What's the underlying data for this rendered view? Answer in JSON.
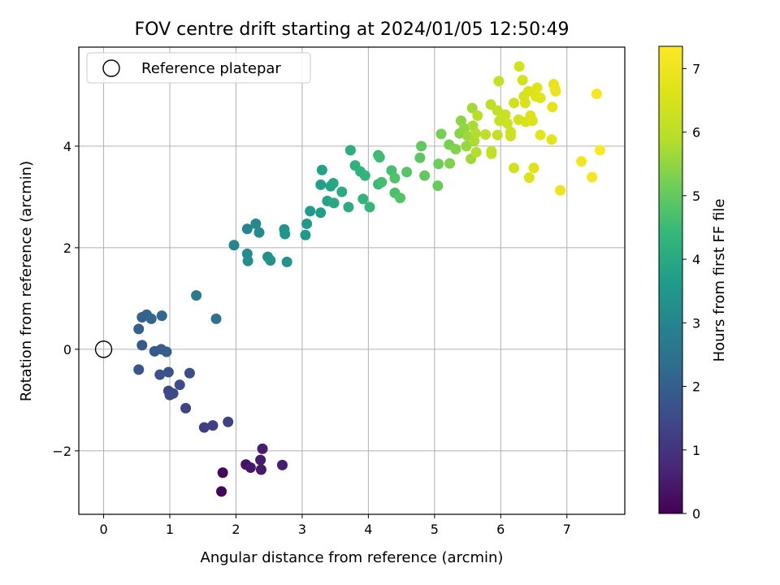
{
  "chart_data": {
    "type": "scatter",
    "title": "FOV centre drift starting at 2024/01/05 12:50:49",
    "xlabel": "Angular distance from reference (arcmin)",
    "ylabel": "Rotation from reference (arcmin)",
    "xlim": [
      -0.375,
      7.875
    ],
    "ylim": [
      -3.25,
      5.95
    ],
    "xticks": [
      0,
      1,
      2,
      3,
      4,
      5,
      6,
      7
    ],
    "yticks": [
      -2,
      0,
      2,
      4
    ],
    "grid": true,
    "legend": {
      "position": "top-left",
      "entries": [
        "Reference platepar"
      ]
    },
    "reference_point": {
      "x": 0,
      "y": 0
    },
    "colorbar": {
      "label": "Hours from first FF file",
      "range": [
        0,
        7.35
      ],
      "ticks": [
        0,
        1,
        2,
        3,
        4,
        5,
        6,
        7
      ],
      "colormap": "viridis"
    },
    "points": [
      {
        "x": 1.78,
        "y": -2.8,
        "h": 0.1
      },
      {
        "x": 1.8,
        "y": -2.43,
        "h": 0.15
      },
      {
        "x": 2.15,
        "y": -2.27,
        "h": 0.3
      },
      {
        "x": 2.22,
        "y": -2.33,
        "h": 0.4
      },
      {
        "x": 2.38,
        "y": -2.37,
        "h": 0.45
      },
      {
        "x": 2.37,
        "y": -2.18,
        "h": 0.5
      },
      {
        "x": 2.4,
        "y": -1.96,
        "h": 0.55
      },
      {
        "x": 2.7,
        "y": -2.28,
        "h": 0.6
      },
      {
        "x": 1.52,
        "y": -1.54,
        "h": 1.2
      },
      {
        "x": 1.65,
        "y": -1.5,
        "h": 1.25
      },
      {
        "x": 1.88,
        "y": -1.43,
        "h": 1.3
      },
      {
        "x": 1.24,
        "y": -1.16,
        "h": 1.35
      },
      {
        "x": 1.0,
        "y": -0.9,
        "h": 1.4
      },
      {
        "x": 0.98,
        "y": -0.82,
        "h": 1.45
      },
      {
        "x": 1.05,
        "y": -0.87,
        "h": 1.5
      },
      {
        "x": 1.15,
        "y": -0.7,
        "h": 1.55
      },
      {
        "x": 1.3,
        "y": -0.47,
        "h": 1.6
      },
      {
        "x": 0.98,
        "y": -0.45,
        "h": 1.65
      },
      {
        "x": 0.85,
        "y": -0.5,
        "h": 1.7
      },
      {
        "x": 0.53,
        "y": -0.4,
        "h": 1.75
      },
      {
        "x": 0.58,
        "y": 0.08,
        "h": 1.8
      },
      {
        "x": 0.77,
        "y": -0.04,
        "h": 1.85
      },
      {
        "x": 0.87,
        "y": 0.0,
        "h": 1.9
      },
      {
        "x": 0.95,
        "y": -0.05,
        "h": 1.95
      },
      {
        "x": 0.53,
        "y": 0.4,
        "h": 2.0
      },
      {
        "x": 0.58,
        "y": 0.63,
        "h": 2.05
      },
      {
        "x": 0.65,
        "y": 0.68,
        "h": 2.1
      },
      {
        "x": 0.72,
        "y": 0.6,
        "h": 2.15
      },
      {
        "x": 0.88,
        "y": 0.66,
        "h": 2.2
      },
      {
        "x": 1.7,
        "y": 0.6,
        "h": 2.5
      },
      {
        "x": 1.4,
        "y": 1.06,
        "h": 2.7
      },
      {
        "x": 1.97,
        "y": 2.05,
        "h": 3.0
      },
      {
        "x": 2.17,
        "y": 2.37,
        "h": 3.05
      },
      {
        "x": 2.3,
        "y": 2.47,
        "h": 3.1
      },
      {
        "x": 2.35,
        "y": 2.3,
        "h": 3.15
      },
      {
        "x": 2.17,
        "y": 1.88,
        "h": 3.2
      },
      {
        "x": 2.18,
        "y": 1.74,
        "h": 3.25
      },
      {
        "x": 2.48,
        "y": 1.82,
        "h": 3.3
      },
      {
        "x": 2.52,
        "y": 1.75,
        "h": 3.35
      },
      {
        "x": 2.77,
        "y": 1.72,
        "h": 3.4
      },
      {
        "x": 2.73,
        "y": 2.36,
        "h": 3.45
      },
      {
        "x": 2.74,
        "y": 2.27,
        "h": 3.5
      },
      {
        "x": 3.05,
        "y": 2.25,
        "h": 3.55
      },
      {
        "x": 3.07,
        "y": 2.47,
        "h": 3.6
      },
      {
        "x": 3.12,
        "y": 2.72,
        "h": 3.65
      },
      {
        "x": 3.28,
        "y": 2.69,
        "h": 3.7
      },
      {
        "x": 3.28,
        "y": 3.24,
        "h": 3.75
      },
      {
        "x": 3.3,
        "y": 3.53,
        "h": 3.8
      },
      {
        "x": 3.38,
        "y": 2.92,
        "h": 3.85
      },
      {
        "x": 3.43,
        "y": 3.21,
        "h": 3.9
      },
      {
        "x": 3.47,
        "y": 3.27,
        "h": 3.95
      },
      {
        "x": 3.48,
        "y": 2.88,
        "h": 4.0
      },
      {
        "x": 3.6,
        "y": 3.1,
        "h": 4.05
      },
      {
        "x": 3.7,
        "y": 2.8,
        "h": 4.1
      },
      {
        "x": 3.73,
        "y": 3.92,
        "h": 4.15
      },
      {
        "x": 3.8,
        "y": 3.62,
        "h": 4.2
      },
      {
        "x": 3.88,
        "y": 3.5,
        "h": 4.25
      },
      {
        "x": 3.92,
        "y": 2.96,
        "h": 4.3
      },
      {
        "x": 3.95,
        "y": 3.42,
        "h": 4.35
      },
      {
        "x": 4.02,
        "y": 2.8,
        "h": 4.4
      },
      {
        "x": 4.15,
        "y": 3.25,
        "h": 4.45
      },
      {
        "x": 4.15,
        "y": 3.82,
        "h": 4.5
      },
      {
        "x": 4.17,
        "y": 3.78,
        "h": 4.55
      },
      {
        "x": 4.2,
        "y": 3.29,
        "h": 4.6
      },
      {
        "x": 4.35,
        "y": 3.52,
        "h": 4.65
      },
      {
        "x": 4.4,
        "y": 3.08,
        "h": 4.7
      },
      {
        "x": 4.4,
        "y": 3.37,
        "h": 4.75
      },
      {
        "x": 4.48,
        "y": 2.98,
        "h": 4.8
      },
      {
        "x": 4.58,
        "y": 3.49,
        "h": 4.85
      },
      {
        "x": 4.78,
        "y": 3.77,
        "h": 4.9
      },
      {
        "x": 4.8,
        "y": 4.0,
        "h": 4.95
      },
      {
        "x": 4.85,
        "y": 3.42,
        "h": 5.0
      },
      {
        "x": 5.05,
        "y": 3.22,
        "h": 5.05
      },
      {
        "x": 5.06,
        "y": 3.65,
        "h": 5.1
      },
      {
        "x": 5.1,
        "y": 4.24,
        "h": 5.2
      },
      {
        "x": 5.22,
        "y": 4.03,
        "h": 5.25
      },
      {
        "x": 5.23,
        "y": 3.66,
        "h": 5.3
      },
      {
        "x": 5.32,
        "y": 3.94,
        "h": 5.35
      },
      {
        "x": 5.38,
        "y": 4.25,
        "h": 5.4
      },
      {
        "x": 5.4,
        "y": 4.5,
        "h": 5.45
      },
      {
        "x": 5.45,
        "y": 4.35,
        "h": 5.5
      },
      {
        "x": 5.48,
        "y": 4.0,
        "h": 5.55
      },
      {
        "x": 5.5,
        "y": 4.2,
        "h": 5.6
      },
      {
        "x": 5.55,
        "y": 3.75,
        "h": 5.65
      },
      {
        "x": 5.57,
        "y": 4.75,
        "h": 5.7
      },
      {
        "x": 5.58,
        "y": 4.4,
        "h": 5.75
      },
      {
        "x": 5.6,
        "y": 4.1,
        "h": 5.8
      },
      {
        "x": 5.62,
        "y": 4.25,
        "h": 5.85
      },
      {
        "x": 5.63,
        "y": 3.88,
        "h": 5.9
      },
      {
        "x": 5.65,
        "y": 4.6,
        "h": 5.95
      },
      {
        "x": 5.77,
        "y": 4.23,
        "h": 6.0
      },
      {
        "x": 5.85,
        "y": 4.82,
        "h": 6.05
      },
      {
        "x": 5.86,
        "y": 3.9,
        "h": 6.1
      },
      {
        "x": 5.86,
        "y": 3.85,
        "h": 6.12
      },
      {
        "x": 5.95,
        "y": 4.7,
        "h": 6.15
      },
      {
        "x": 5.95,
        "y": 4.22,
        "h": 6.18
      },
      {
        "x": 5.97,
        "y": 5.28,
        "h": 6.2
      },
      {
        "x": 5.98,
        "y": 4.5,
        "h": 6.22
      },
      {
        "x": 6.07,
        "y": 4.62,
        "h": 6.25
      },
      {
        "x": 6.1,
        "y": 4.45,
        "h": 6.28
      },
      {
        "x": 6.15,
        "y": 4.28,
        "h": 6.3
      },
      {
        "x": 6.15,
        "y": 4.2,
        "h": 6.32
      },
      {
        "x": 6.2,
        "y": 4.85,
        "h": 6.35
      },
      {
        "x": 6.2,
        "y": 3.57,
        "h": 6.38
      },
      {
        "x": 6.27,
        "y": 4.52,
        "h": 6.4
      },
      {
        "x": 6.28,
        "y": 5.57,
        "h": 6.42
      },
      {
        "x": 6.33,
        "y": 5.3,
        "h": 6.45
      },
      {
        "x": 6.35,
        "y": 4.98,
        "h": 6.48
      },
      {
        "x": 6.37,
        "y": 4.85,
        "h": 6.5
      },
      {
        "x": 6.38,
        "y": 4.48,
        "h": 6.52
      },
      {
        "x": 6.42,
        "y": 5.08,
        "h": 6.55
      },
      {
        "x": 6.43,
        "y": 3.38,
        "h": 6.58
      },
      {
        "x": 6.45,
        "y": 4.6,
        "h": 6.6
      },
      {
        "x": 6.48,
        "y": 4.5,
        "h": 6.62
      },
      {
        "x": 6.5,
        "y": 3.57,
        "h": 6.65
      },
      {
        "x": 6.53,
        "y": 4.98,
        "h": 6.68
      },
      {
        "x": 6.55,
        "y": 5.15,
        "h": 6.7
      },
      {
        "x": 6.6,
        "y": 4.95,
        "h": 6.72
      },
      {
        "x": 6.6,
        "y": 4.22,
        "h": 6.75
      },
      {
        "x": 6.77,
        "y": 4.13,
        "h": 6.78
      },
      {
        "x": 6.78,
        "y": 4.77,
        "h": 6.8
      },
      {
        "x": 6.8,
        "y": 5.22,
        "h": 6.85
      },
      {
        "x": 6.82,
        "y": 5.13,
        "h": 6.9
      },
      {
        "x": 6.83,
        "y": 5.08,
        "h": 6.95
      },
      {
        "x": 6.9,
        "y": 3.13,
        "h": 7.0
      },
      {
        "x": 7.22,
        "y": 3.7,
        "h": 7.1
      },
      {
        "x": 7.38,
        "y": 3.39,
        "h": 7.2
      },
      {
        "x": 7.45,
        "y": 5.03,
        "h": 7.25
      },
      {
        "x": 7.5,
        "y": 3.92,
        "h": 7.3
      }
    ]
  }
}
